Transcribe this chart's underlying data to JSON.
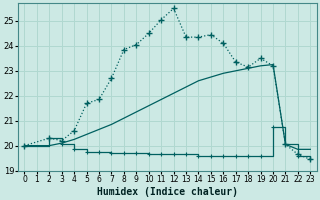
{
  "xlabel": "Humidex (Indice chaleur)",
  "bg_color": "#cce9e4",
  "grid_color": "#b0d8d0",
  "line_color": "#006060",
  "xlim": [
    -0.5,
    23.5
  ],
  "ylim": [
    19.0,
    25.7
  ],
  "yticks": [
    19,
    20,
    21,
    22,
    23,
    24,
    25
  ],
  "xticks": [
    0,
    1,
    2,
    3,
    4,
    5,
    6,
    7,
    8,
    9,
    10,
    11,
    12,
    13,
    14,
    15,
    16,
    17,
    18,
    19,
    20,
    21,
    22,
    23
  ],
  "line_top_x": [
    0,
    2,
    3,
    4,
    5,
    6,
    7,
    8,
    9,
    10,
    11,
    12,
    13,
    14,
    15,
    16,
    17,
    18,
    19,
    20,
    21,
    22,
    23
  ],
  "line_top_y": [
    20.0,
    20.3,
    20.2,
    20.6,
    21.7,
    21.85,
    22.7,
    23.85,
    24.05,
    24.5,
    25.05,
    25.5,
    24.35,
    24.35,
    24.45,
    24.1,
    23.35,
    23.15,
    23.5,
    23.2,
    20.05,
    19.65,
    19.45
  ],
  "line_mid_x": [
    0,
    2,
    3,
    4,
    5,
    6,
    7,
    8,
    9,
    10,
    11,
    12,
    13,
    14,
    15,
    16,
    17,
    18,
    19,
    20,
    21,
    22,
    23
  ],
  "line_mid_y": [
    20.0,
    20.0,
    20.1,
    20.25,
    20.45,
    20.65,
    20.85,
    21.1,
    21.35,
    21.6,
    21.85,
    22.1,
    22.35,
    22.6,
    22.75,
    22.9,
    23.0,
    23.1,
    23.2,
    23.25,
    20.05,
    19.85,
    19.85
  ],
  "line_bot_x": [
    0,
    2,
    3,
    4,
    5,
    6,
    7,
    8,
    9,
    10,
    11,
    12,
    13,
    14,
    15,
    16,
    17,
    18,
    19,
    20,
    21,
    22,
    23
  ],
  "line_bot_y": [
    20.0,
    20.3,
    20.05,
    19.85,
    19.75,
    19.75,
    19.7,
    19.7,
    19.7,
    19.65,
    19.65,
    19.65,
    19.65,
    19.6,
    19.6,
    19.6,
    19.6,
    19.6,
    19.6,
    20.75,
    20.05,
    19.6,
    19.45
  ],
  "xlabel_fontsize": 7,
  "tick_fontsize": 6
}
